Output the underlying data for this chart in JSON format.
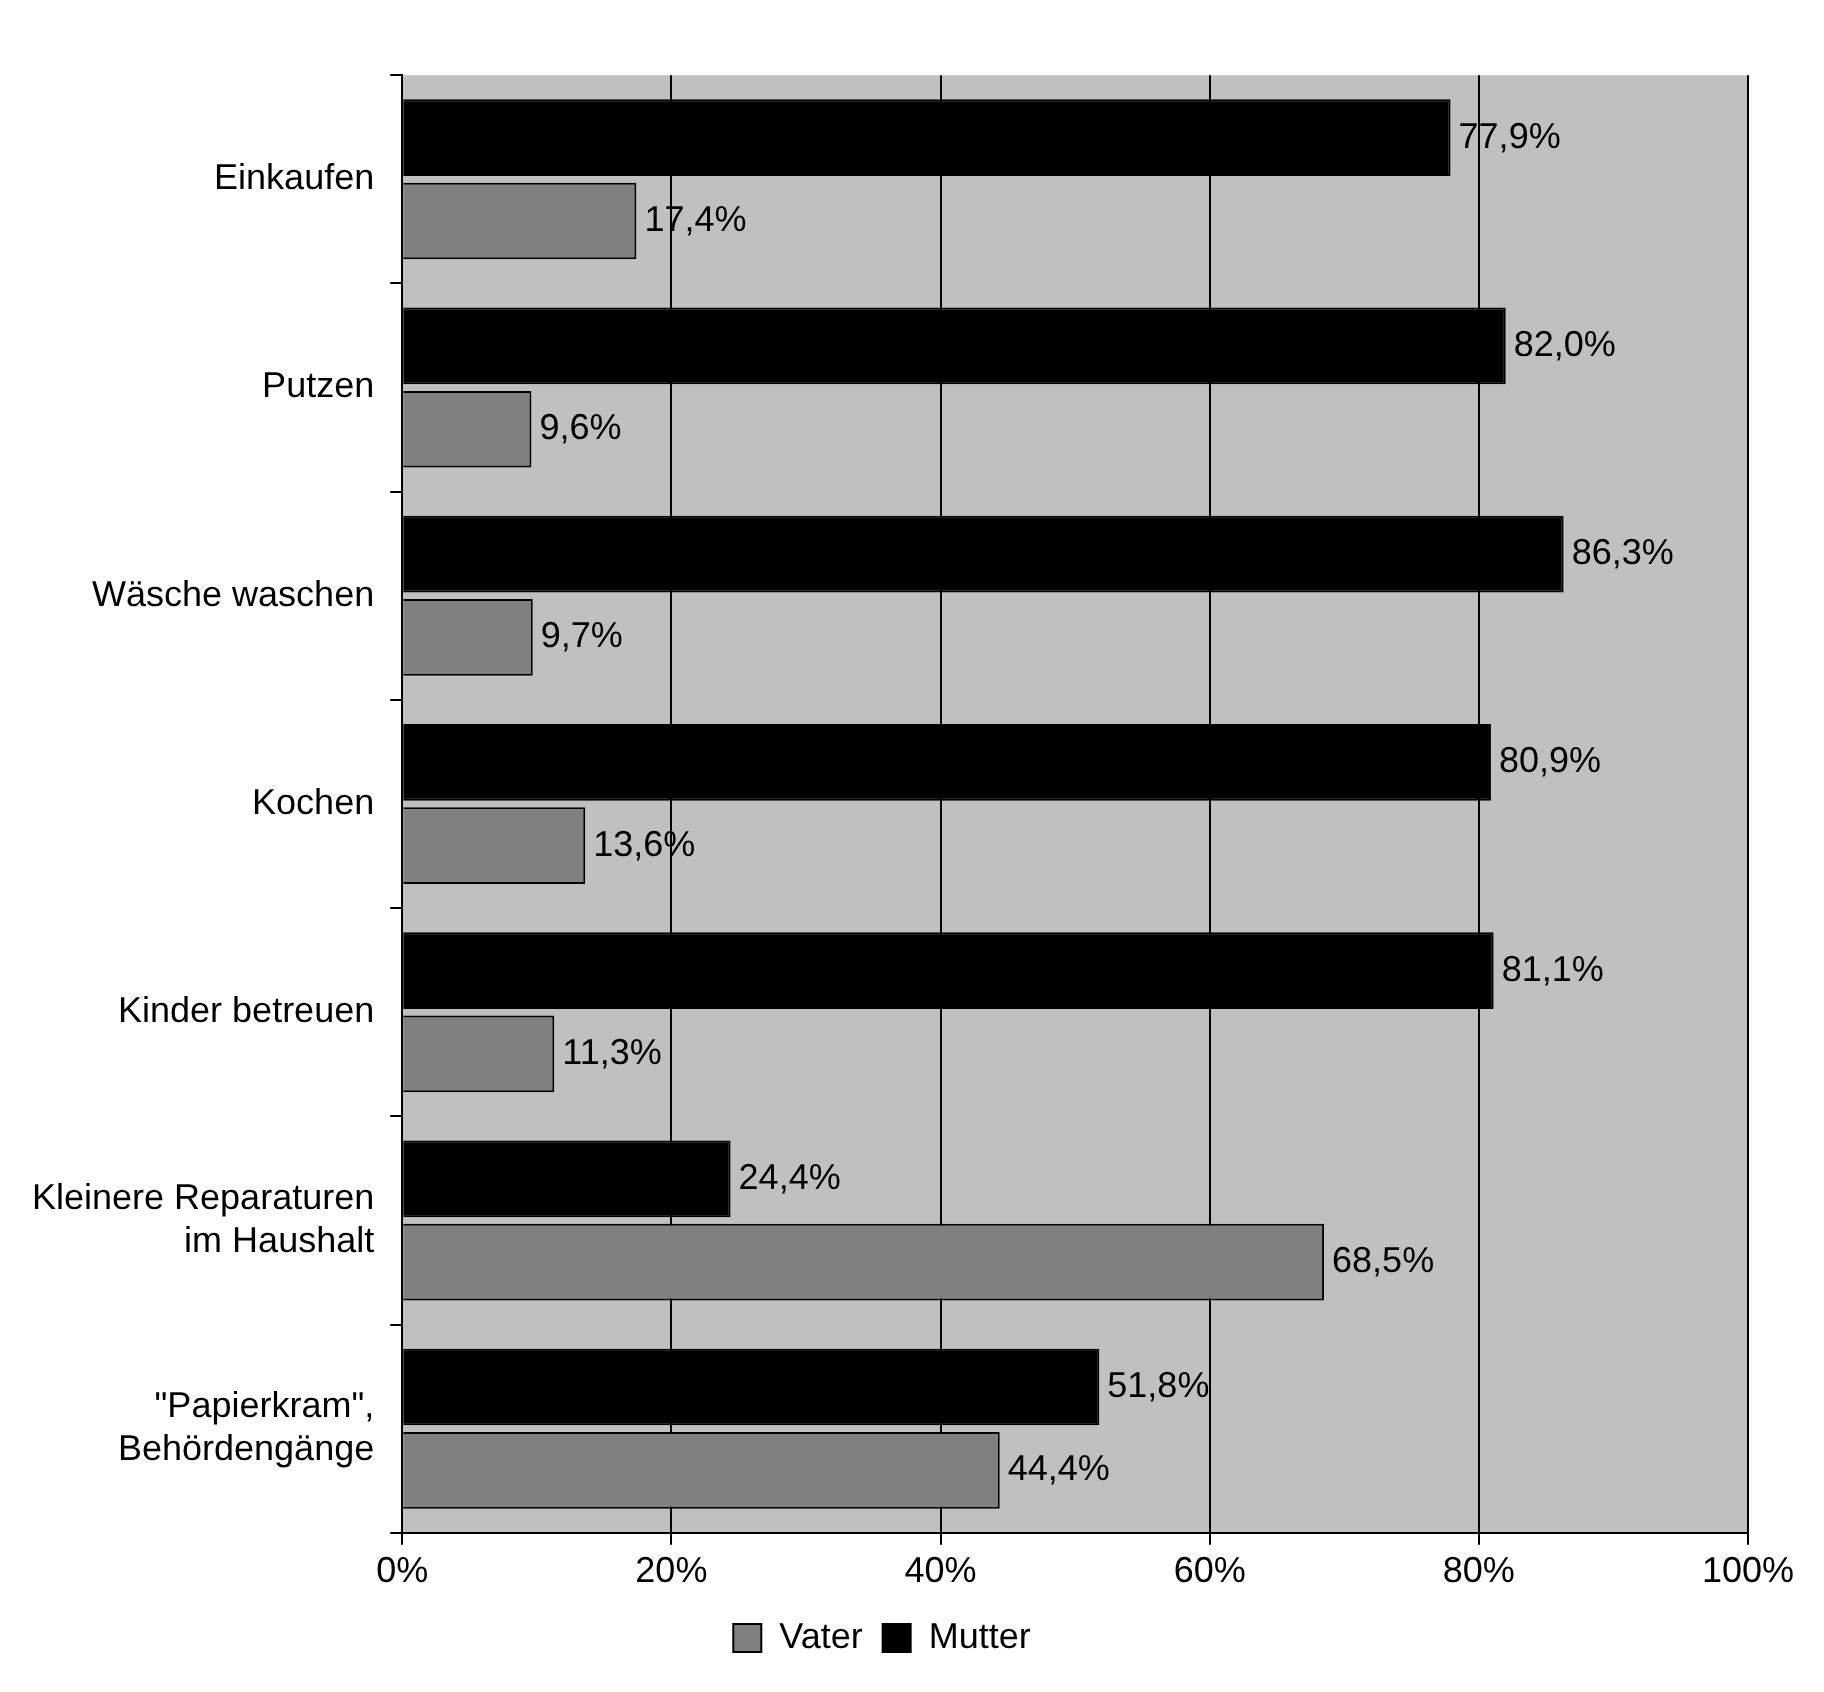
{
  "chart_data": {
    "type": "bar",
    "orientation": "horizontal",
    "categories": [
      "Einkaufen",
      "Putzen",
      "Wäsche waschen",
      "Kochen",
      "Kinder betreuen",
      "Kleinere Reparaturen im Haushalt",
      "\"Papierkram\", Behördengänge"
    ],
    "series": [
      {
        "name": "Mutter",
        "color": "#000000",
        "values": [
          77.9,
          82.0,
          86.3,
          80.9,
          81.1,
          24.4,
          51.8
        ],
        "value_labels": [
          "77,9%",
          "82,0%",
          "86,3%",
          "80,9%",
          "81,1%",
          "24,4%",
          "51,8%"
        ]
      },
      {
        "name": "Vater",
        "color": "#808080",
        "values": [
          17.4,
          9.6,
          9.7,
          13.6,
          11.3,
          68.5,
          44.4
        ],
        "value_labels": [
          "17,4%",
          "9,6%",
          "9,7%",
          "13,6%",
          "11,3%",
          "68,5%",
          "44,4%"
        ]
      }
    ],
    "xlim": [
      0,
      100
    ],
    "xticks": [
      {
        "value": 0,
        "label": "0%"
      },
      {
        "value": 20,
        "label": "20%"
      },
      {
        "value": 40,
        "label": "40%"
      },
      {
        "value": 60,
        "label": "60%"
      },
      {
        "value": 80,
        "label": "80%"
      },
      {
        "value": 100,
        "label": "100%"
      }
    ],
    "grid": "x",
    "legend": "bottom"
  }
}
